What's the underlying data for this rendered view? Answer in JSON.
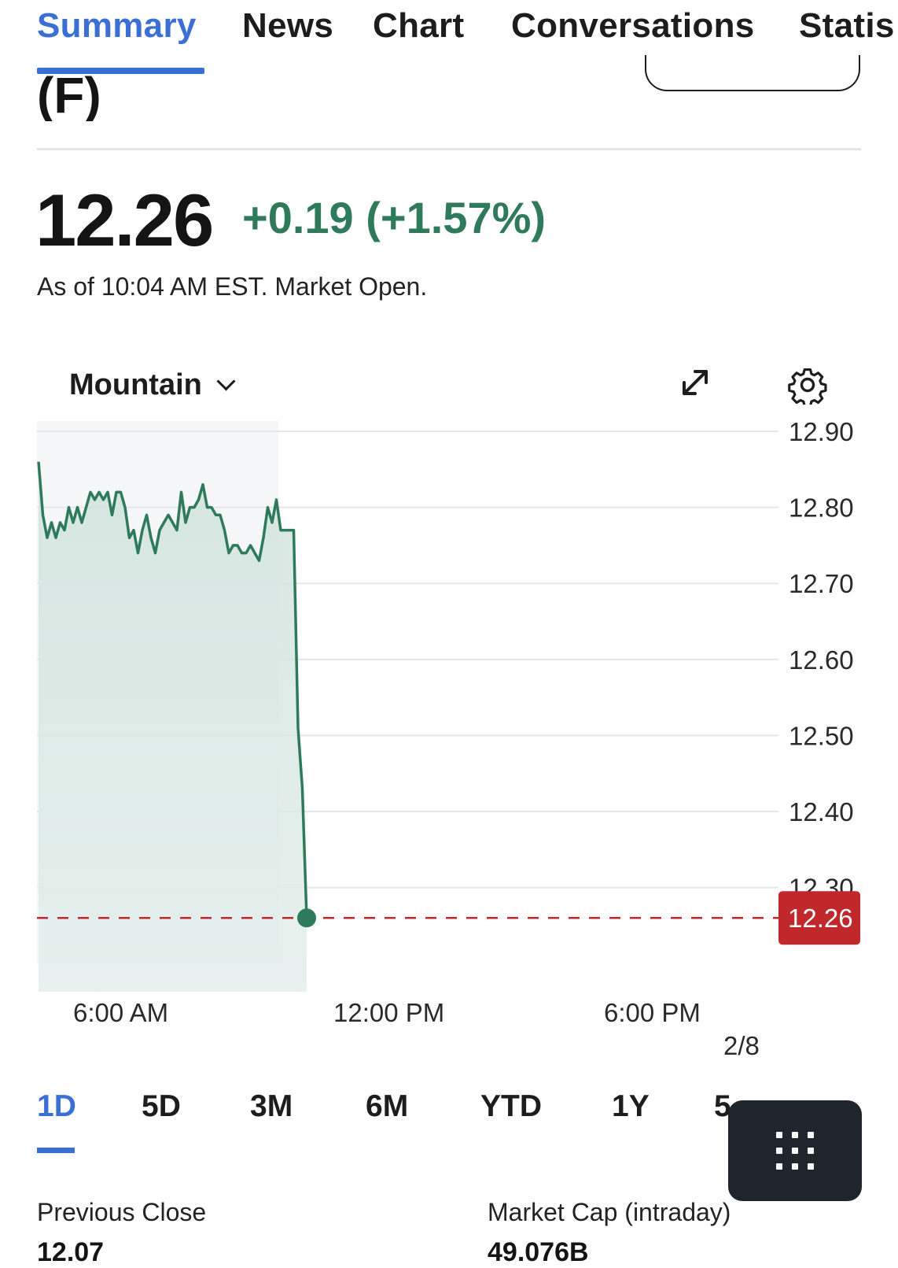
{
  "tabs": [
    {
      "label": "Summary",
      "active": true
    },
    {
      "label": "News",
      "active": false
    },
    {
      "label": "Chart",
      "active": false
    },
    {
      "label": "Conversations",
      "active": false
    },
    {
      "label": "Statis",
      "active": false
    }
  ],
  "quote": {
    "symbol": "(F)",
    "price": "12.26",
    "change": "+0.19 (+1.57%)",
    "as_of": "As of 10:04 AM EST. Market Open."
  },
  "chart_controls": {
    "type_label": "Mountain",
    "icons": [
      "chevron-down-icon",
      "expand-icon",
      "gear-icon"
    ]
  },
  "chart_data": {
    "type": "area",
    "x_tick_labels": [
      "6:00 AM",
      "12:00 PM",
      "6:00 PM"
    ],
    "date_label": "2/8",
    "y_ticks": [
      12.9,
      12.8,
      12.7,
      12.6,
      12.5,
      12.4,
      12.3
    ],
    "ylim": [
      12.07,
      12.9
    ],
    "current_price": 12.26,
    "current_price_label": "12.26",
    "previous_close_label": "12.07",
    "series": [
      {
        "values": [
          12.86,
          12.79,
          12.76,
          12.78,
          12.76,
          12.78,
          12.77,
          12.8,
          12.78,
          12.8,
          12.78,
          12.8,
          12.82,
          12.81,
          12.82,
          12.81,
          12.82,
          12.79,
          12.82,
          12.82,
          12.8,
          12.76,
          12.77,
          12.74,
          12.77,
          12.79,
          12.76,
          12.74,
          12.77,
          12.78,
          12.79,
          12.78,
          12.77,
          12.82,
          12.78,
          12.8,
          12.8,
          12.81,
          12.83,
          12.8,
          12.8,
          12.79,
          12.79,
          12.77,
          12.74,
          12.75,
          12.75,
          12.74,
          12.74,
          12.75,
          12.74,
          12.73,
          12.76,
          12.8,
          12.78,
          12.81,
          12.77,
          12.77,
          12.77,
          12.77,
          12.51,
          12.43,
          12.26
        ]
      }
    ],
    "colors": {
      "line": "#2f7a5a",
      "current_badge": "#c0282b",
      "prev_close_badge": "#1f2a33",
      "reference_line": "#c0282b"
    }
  },
  "ranges": [
    {
      "label": "1D",
      "active": true
    },
    {
      "label": "5D",
      "active": false
    },
    {
      "label": "3M",
      "active": false
    },
    {
      "label": "6M",
      "active": false
    },
    {
      "label": "YTD",
      "active": false
    },
    {
      "label": "1Y",
      "active": false
    },
    {
      "label": "5",
      "active": false
    }
  ],
  "stats": {
    "previous_close_label": "Previous Close",
    "previous_close_value": "12.07",
    "market_cap_label": "Market Cap (intraday)",
    "market_cap_value": "49.076B"
  },
  "colors": {
    "accent": "#3b6fd4",
    "positive": "#2f7a5a"
  }
}
